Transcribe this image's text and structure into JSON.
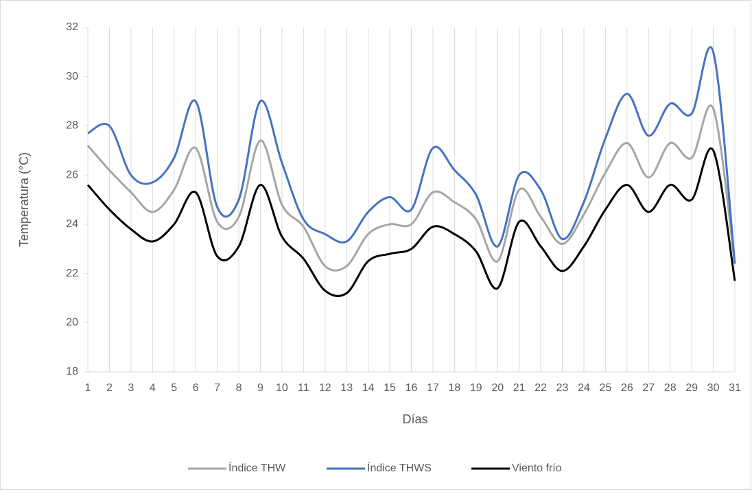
{
  "chart_data": {
    "type": "line",
    "ylabel": "Temperatura (°C)",
    "xlabel": "Días",
    "categories": [
      "1",
      "2",
      "3",
      "4",
      "5",
      "6",
      "7",
      "8",
      "9",
      "10",
      "11",
      "12",
      "13",
      "14",
      "15",
      "16",
      "17",
      "18",
      "19",
      "20",
      "21",
      "22",
      "23",
      "24",
      "25",
      "26",
      "27",
      "28",
      "29",
      "30",
      "31"
    ],
    "series": [
      {
        "name": "Índice THW",
        "color": "#a5a5a5",
        "values": [
          27.2,
          26.2,
          25.3,
          24.5,
          25.4,
          27.1,
          24.1,
          24.3,
          27.4,
          24.8,
          23.9,
          22.3,
          22.3,
          23.6,
          24.0,
          24.0,
          25.3,
          24.9,
          24.2,
          22.5,
          25.4,
          24.3,
          23.2,
          24.4,
          26.1,
          27.3,
          25.9,
          27.3,
          26.7,
          28.7,
          22.4
        ]
      },
      {
        "name": "Índice THWS",
        "color": "#4472c4",
        "values": [
          27.7,
          28.0,
          26.0,
          25.7,
          26.7,
          29.0,
          24.7,
          25.0,
          29.0,
          26.5,
          24.2,
          23.6,
          23.3,
          24.5,
          25.1,
          24.6,
          27.1,
          26.2,
          25.2,
          23.1,
          26.0,
          25.4,
          23.4,
          24.9,
          27.5,
          29.3,
          27.6,
          28.9,
          28.5,
          31.0,
          22.4
        ]
      },
      {
        "name": "Viento frío",
        "color": "#000000",
        "values": [
          25.6,
          24.6,
          23.8,
          23.3,
          24.0,
          25.3,
          22.7,
          23.1,
          25.6,
          23.5,
          22.6,
          21.3,
          21.2,
          22.5,
          22.8,
          23.0,
          23.9,
          23.6,
          22.9,
          21.4,
          24.1,
          23.1,
          22.1,
          23.1,
          24.6,
          25.6,
          24.5,
          25.6,
          25.0,
          27.0,
          21.7
        ]
      }
    ],
    "ylim": [
      18,
      32
    ],
    "yticks": [
      18,
      20,
      22,
      24,
      26,
      28,
      30,
      32
    ],
    "grid": "x",
    "legend": "bottom"
  }
}
